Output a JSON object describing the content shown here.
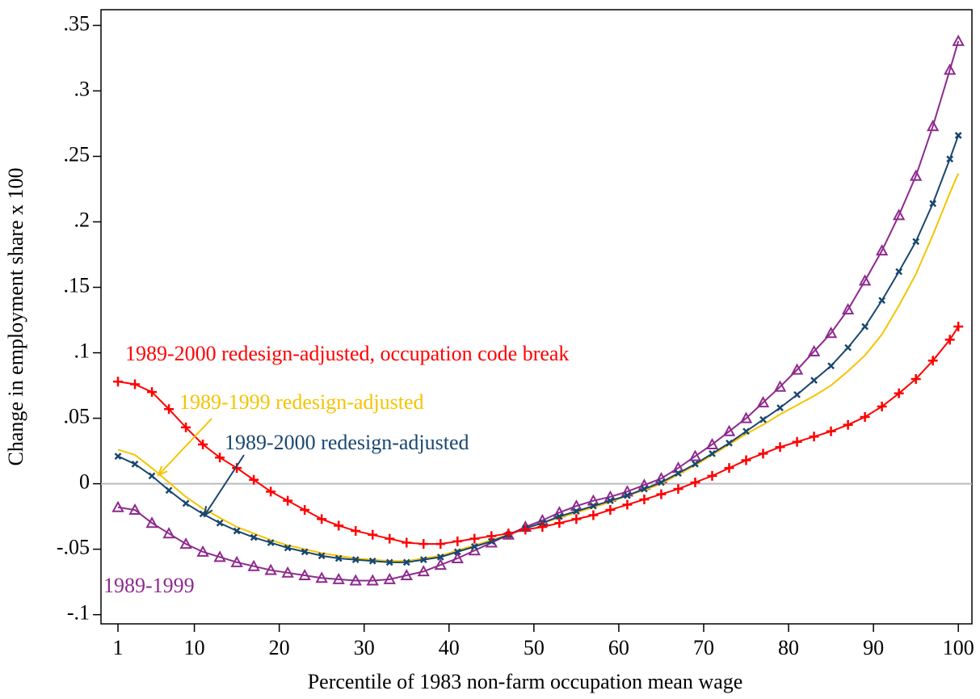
{
  "chart_data": {
    "type": "line",
    "x_label": "Percentile of 1983 non-farm occupation mean wage",
    "y_label": "Change in employment share x 100",
    "x": [
      1,
      3,
      5,
      7,
      9,
      11,
      13,
      15,
      17,
      19,
      21,
      23,
      25,
      27,
      29,
      31,
      33,
      35,
      37,
      39,
      41,
      43,
      45,
      47,
      49,
      51,
      53,
      55,
      57,
      59,
      61,
      63,
      65,
      67,
      69,
      71,
      73,
      75,
      77,
      79,
      81,
      83,
      85,
      87,
      89,
      91,
      93,
      95,
      97,
      99,
      100
    ],
    "series": [
      {
        "name": "1989-1999",
        "color": "#8e2a8e",
        "marker": "triangle",
        "values": [
          -0.018,
          -0.02,
          -0.03,
          -0.038,
          -0.046,
          -0.052,
          -0.056,
          -0.06,
          -0.063,
          -0.066,
          -0.068,
          -0.07,
          -0.072,
          -0.073,
          -0.074,
          -0.074,
          -0.073,
          -0.07,
          -0.067,
          -0.062,
          -0.057,
          -0.051,
          -0.045,
          -0.039,
          -0.033,
          -0.028,
          -0.022,
          -0.017,
          -0.013,
          -0.01,
          -0.006,
          -0.001,
          0.004,
          0.012,
          0.021,
          0.03,
          0.04,
          0.05,
          0.062,
          0.074,
          0.087,
          0.101,
          0.115,
          0.133,
          0.155,
          0.178,
          0.205,
          0.235,
          0.273,
          0.316,
          0.338
        ]
      },
      {
        "name": "1989-1999 redesign-adjusted",
        "color": "#f5c400",
        "marker": "none",
        "values": [
          0.026,
          0.022,
          0.012,
          0.001,
          -0.01,
          -0.019,
          -0.026,
          -0.033,
          -0.038,
          -0.043,
          -0.047,
          -0.05,
          -0.053,
          -0.055,
          -0.057,
          -0.058,
          -0.059,
          -0.059,
          -0.057,
          -0.055,
          -0.051,
          -0.047,
          -0.043,
          -0.039,
          -0.034,
          -0.03,
          -0.026,
          -0.022,
          -0.018,
          -0.014,
          -0.009,
          -0.005,
          0,
          0.007,
          0.014,
          0.022,
          0.03,
          0.038,
          0.045,
          0.053,
          0.06,
          0.067,
          0.075,
          0.086,
          0.098,
          0.114,
          0.136,
          0.16,
          0.19,
          0.222,
          0.237
        ]
      },
      {
        "name": "1989-2000 redesign-adjusted",
        "color": "#1a476f",
        "marker": "x",
        "values": [
          0.021,
          0.015,
          0.006,
          -0.005,
          -0.015,
          -0.023,
          -0.03,
          -0.036,
          -0.041,
          -0.045,
          -0.049,
          -0.052,
          -0.055,
          -0.057,
          -0.058,
          -0.059,
          -0.06,
          -0.06,
          -0.058,
          -0.056,
          -0.052,
          -0.048,
          -0.044,
          -0.039,
          -0.034,
          -0.03,
          -0.025,
          -0.021,
          -0.017,
          -0.013,
          -0.009,
          -0.004,
          0.001,
          0.008,
          0.015,
          0.023,
          0.031,
          0.04,
          0.049,
          0.058,
          0.068,
          0.079,
          0.09,
          0.104,
          0.12,
          0.14,
          0.162,
          0.185,
          0.214,
          0.248,
          0.266
        ]
      },
      {
        "name": "1989-2000 redesign-adjusted, occupation code break",
        "color": "#ff0000",
        "marker": "plus",
        "values": [
          0.078,
          0.076,
          0.07,
          0.057,
          0.043,
          0.03,
          0.02,
          0.012,
          0.003,
          -0.006,
          -0.013,
          -0.02,
          -0.027,
          -0.032,
          -0.036,
          -0.039,
          -0.042,
          -0.045,
          -0.046,
          -0.046,
          -0.044,
          -0.042,
          -0.04,
          -0.038,
          -0.035,
          -0.033,
          -0.03,
          -0.027,
          -0.024,
          -0.02,
          -0.016,
          -0.012,
          -0.008,
          -0.004,
          0.001,
          0.006,
          0.012,
          0.018,
          0.023,
          0.028,
          0.032,
          0.036,
          0.04,
          0.045,
          0.051,
          0.059,
          0.069,
          0.08,
          0.094,
          0.11,
          0.12
        ]
      }
    ],
    "xlim": [
      -1,
      101.6
    ],
    "ylim": [
      -0.107,
      0.362
    ],
    "xticks": [
      1,
      10,
      20,
      30,
      40,
      50,
      60,
      70,
      80,
      90,
      100
    ],
    "yticks": [
      {
        "value": -0.1,
        "label": "-.1"
      },
      {
        "value": -0.05,
        "label": "-.05"
      },
      0,
      {
        "value": 0.05,
        "label": ".05"
      },
      {
        "value": 0.1,
        "label": ".1"
      },
      {
        "value": 0.15,
        "label": ".15"
      },
      {
        "value": 0.2,
        "label": ".2"
      },
      {
        "value": 0.25,
        "label": ".25"
      },
      {
        "value": 0.3,
        "label": ".3"
      },
      {
        "value": 0.35,
        "label": ".35"
      }
    ],
    "yline": 0,
    "grid": false
  }
}
